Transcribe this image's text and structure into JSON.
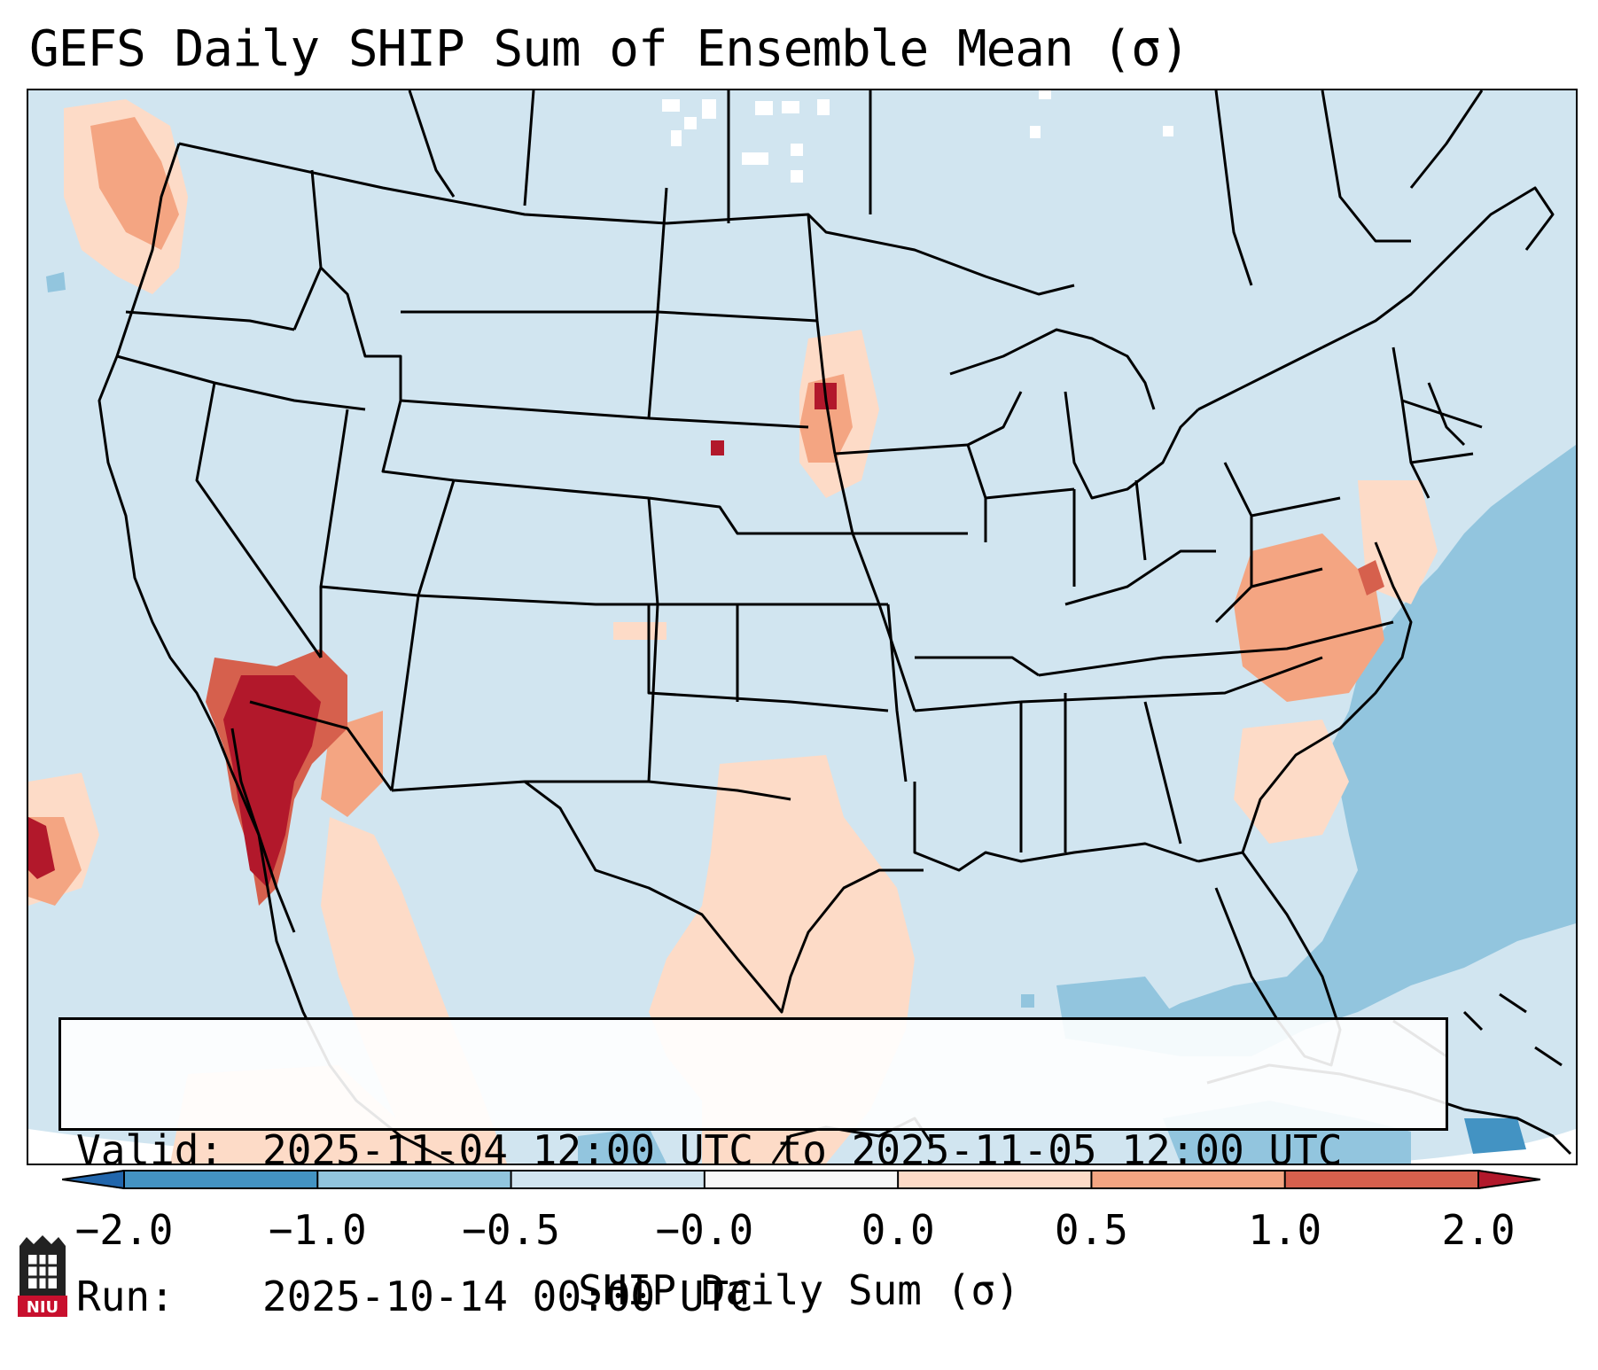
{
  "title": "GEFS Daily SHIP Sum of Ensemble Mean (σ)",
  "map": {
    "region": "CONUS",
    "ocean_background_color": "#d1e5f0",
    "border_color": "#000000",
    "anomaly_areas": [
      {
        "name": "southern-california-arizona-border",
        "category": "> 2.0",
        "color": "#b2182b"
      },
      {
        "name": "southern-california-coast",
        "category": "1.0 to 2.0",
        "color": "#d6604d"
      },
      {
        "name": "virginia-north-carolina",
        "category": "0.5 to 1.0",
        "color": "#f4a582"
      },
      {
        "name": "southeast-south-dakota",
        "category": "0.5 to 1.0",
        "color": "#f4a582"
      },
      {
        "name": "south-texas",
        "category": "0.0 to 0.5",
        "color": "#fddbc7"
      },
      {
        "name": "pacific-northwest-offshore",
        "category": "0.0 to 0.5",
        "color": "#fddbc7"
      },
      {
        "name": "gulf-of-california",
        "category": "0.0 to 0.5",
        "color": "#fddbc7"
      },
      {
        "name": "western-atlantic",
        "category": "-1.0 to -0.5",
        "color": "#92c5de"
      },
      {
        "name": "cuba-region",
        "category": "-2.0 to -1.0",
        "color": "#4393c3"
      }
    ]
  },
  "info": {
    "valid_label": "Valid:",
    "valid_value": "2025-11-04 12:00 UTC to 2025-11-05 12:00 UTC",
    "run_label": "Run:",
    "run_value": "2025-10-14 00:00 UTC"
  },
  "colorbar": {
    "label": "SHIP Daily Sum (σ)",
    "tick_labels": [
      "−2.0",
      "−1.0",
      "−0.5",
      "−0.0",
      "0.0",
      "0.5",
      "1.0",
      "2.0"
    ],
    "bins": [
      {
        "color": "#2166ac",
        "range": "< -2.0"
      },
      {
        "color": "#4393c3",
        "range": "-2.0 to -1.0"
      },
      {
        "color": "#92c5de",
        "range": "-1.0 to -0.5"
      },
      {
        "color": "#d1e5f0",
        "range": "-0.5 to -0.0"
      },
      {
        "color": "#f7f7f7",
        "range": "-0.0 to 0.0"
      },
      {
        "color": "#fddbc7",
        "range": "0.0 to 0.5"
      },
      {
        "color": "#f4a582",
        "range": "0.5 to 1.0"
      },
      {
        "color": "#d6604d",
        "range": "1.0 to 2.0"
      },
      {
        "color": "#b2182b",
        "range": "> 2.0"
      }
    ]
  },
  "logo": {
    "text": "NIU",
    "color": "#c8102e"
  }
}
